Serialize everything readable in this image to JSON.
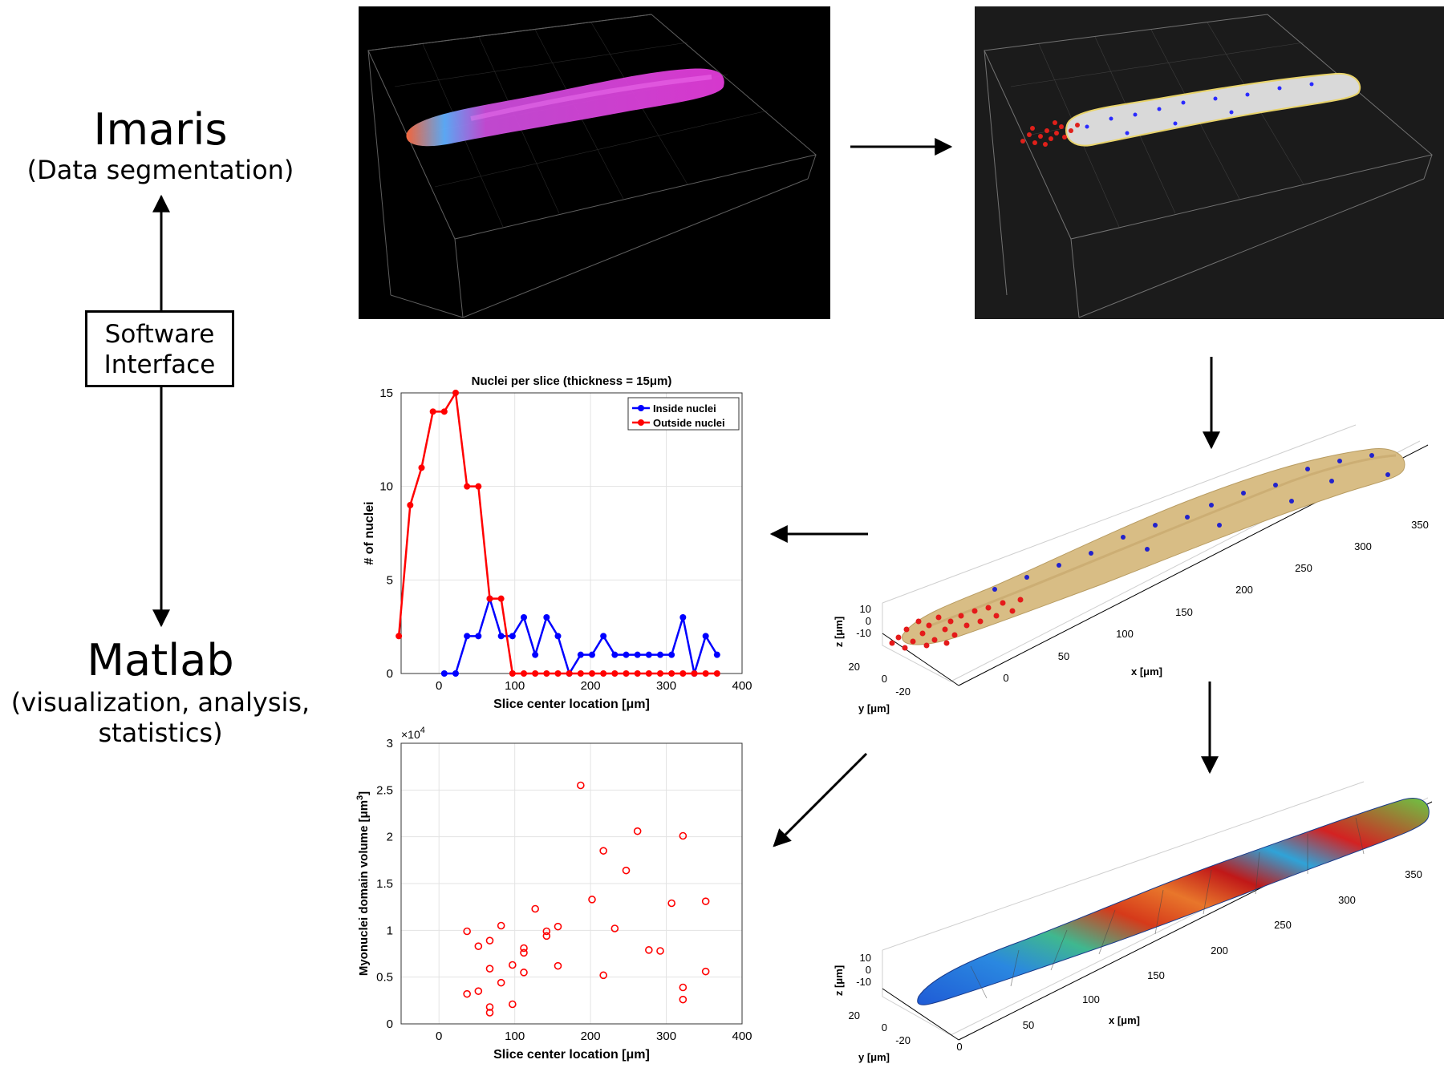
{
  "left": {
    "imaris_title": "Imaris",
    "imaris_subtitle": "(Data segmentation)",
    "software_line1": "Software",
    "software_line2": "Interface",
    "matlab_title": "Matlab",
    "matlab_subtitle_line1": "(visualization, analysis,",
    "matlab_subtitle_line2": "statistics)"
  },
  "colors": {
    "inside": "#0000ff",
    "outside": "#ff0000",
    "fiber_tan": "#d8bd85",
    "render_bg_1": "#000000",
    "render_bg_2": "#1a1a1a"
  },
  "fiber_plot": {
    "z_label": "z [μm]",
    "y_label": "y [μm]",
    "x_label": "x [μm]",
    "z_ticks": [
      "10",
      "0",
      "-10"
    ],
    "y_ticks": [
      "20",
      "0",
      "-20"
    ],
    "x_ticks": [
      "0",
      "50",
      "100",
      "150",
      "200",
      "250",
      "300",
      "350"
    ]
  },
  "chart_data": [
    {
      "type": "line",
      "title": "Nuclei per slice (thickness = 15μm)",
      "xlabel": "Slice center location [μm]",
      "ylabel": "# of nuclei",
      "xlim": [
        -50,
        400
      ],
      "ylim": [
        0,
        15
      ],
      "xticks": [
        "0",
        "100",
        "200",
        "300",
        "400"
      ],
      "yticks": [
        "0",
        "5",
        "10",
        "15"
      ],
      "legend_position": "top-right",
      "series": [
        {
          "name": "Inside nuclei",
          "color": "#0000ff",
          "x": [
            7,
            22,
            37,
            52,
            67,
            82,
            97,
            112,
            127,
            142,
            157,
            172,
            187,
            202,
            217,
            232,
            247,
            262,
            277,
            292,
            307,
            322,
            337,
            352,
            367
          ],
          "y": [
            0,
            0,
            2,
            2,
            4,
            2,
            2,
            3,
            1,
            3,
            2,
            0,
            1,
            1,
            2,
            1,
            1,
            1,
            1,
            1,
            1,
            3,
            0,
            2,
            1
          ]
        },
        {
          "name": "Outside nuclei",
          "color": "#ff0000",
          "x": [
            -53,
            -38,
            -23,
            -8,
            7,
            22,
            37,
            52,
            67,
            82,
            97,
            112,
            127,
            142,
            157,
            172,
            187,
            202,
            217,
            232,
            247,
            262,
            277,
            292,
            307,
            322,
            337,
            352,
            367
          ],
          "y": [
            2,
            9,
            11,
            14,
            14,
            15,
            10,
            10,
            4,
            4,
            0,
            0,
            0,
            0,
            0,
            0,
            0,
            0,
            0,
            0,
            0,
            0,
            0,
            0,
            0,
            0,
            0,
            0,
            0
          ]
        }
      ]
    },
    {
      "type": "scatter",
      "xlabel": "Slice center location [μm]",
      "ylabel": "Myonuclei domain volume [μm3]",
      "ylabel_main": "Myonuclei domain volume [μm",
      "ylabel_sup": "3",
      "ylabel_end": "]",
      "exponent_base": "×10",
      "exponent_power": "4",
      "xlim": [
        -50,
        400
      ],
      "ylim": [
        0,
        3
      ],
      "xticks": [
        "0",
        "100",
        "200",
        "300",
        "400"
      ],
      "yticks": [
        "0",
        "0.5",
        "1",
        "1.5",
        "2",
        "2.5",
        "3"
      ],
      "color": "#ff0000",
      "x": [
        37,
        52,
        67,
        82,
        52,
        67,
        112,
        127,
        142,
        142,
        157,
        97,
        112,
        112,
        157,
        82,
        67,
        67,
        97,
        37,
        187,
        202,
        217,
        217,
        232,
        247,
        262,
        277,
        292,
        307,
        322,
        322,
        322,
        352,
        352
      ],
      "y": [
        0.99,
        0.83,
        0.89,
        1.05,
        0.35,
        0.59,
        0.81,
        1.23,
        0.94,
        0.99,
        1.04,
        0.63,
        0.55,
        0.76,
        0.62,
        0.44,
        0.18,
        0.12,
        0.21,
        0.32,
        2.55,
        1.33,
        1.85,
        0.52,
        1.02,
        1.64,
        2.06,
        0.79,
        0.78,
        1.29,
        2.01,
        0.39,
        0.26,
        1.31,
        0.56
      ]
    }
  ]
}
